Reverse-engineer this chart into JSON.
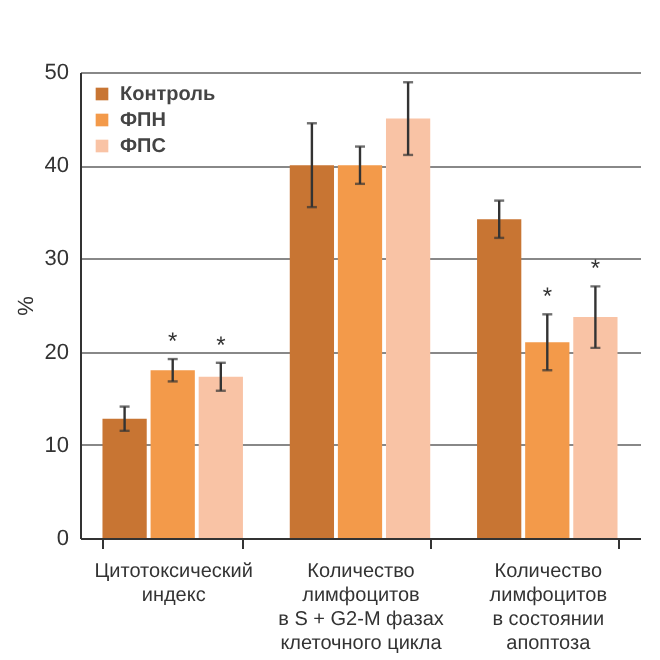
{
  "chart_data": {
    "type": "bar",
    "ylabel": "%",
    "categories": [
      "Цитотоксический\nиндекс",
      "Количество\nлимфоцитов\nв S + G2-M фазах\nклеточного цикла",
      "Количество\nлимфоцитов\nв состоянии\nапоптоза"
    ],
    "series": [
      {
        "name": "Контроль",
        "color": "#c87533",
        "values": [
          12.8,
          40,
          34.2
        ],
        "errors": [
          1.3,
          4.5,
          2
        ]
      },
      {
        "name": "ФПН",
        "color": "#f39a4a",
        "values": [
          18,
          40,
          21
        ],
        "errors": [
          1.2,
          2,
          3
        ]
      },
      {
        "name": "ФПС",
        "color": "#f9c3a5",
        "values": [
          17.3,
          45,
          23.7
        ],
        "errors": [
          1.5,
          3.9,
          3.3
        ]
      }
    ],
    "annotations": [
      {
        "text": "*",
        "x": "Цитотоксический\nиндекс",
        "y": 18
      },
      {
        "text": "*",
        "x": "Цитотоксический\nиндекс",
        "y": 17.3
      },
      {
        "text": "*",
        "x": "Количество\nлимфоцитов\nв состоянии\nапоптоза",
        "y": 21
      },
      {
        "text": "*",
        "x": "Количество\nлимфоцитов\nв состоянии\nапоптоза",
        "y": 23.7
      }
    ],
    "ylim": [
      0,
      50
    ],
    "yticks": [
      0,
      10,
      20,
      30,
      40,
      50
    ],
    "grid": "y",
    "legend": "top left"
  }
}
